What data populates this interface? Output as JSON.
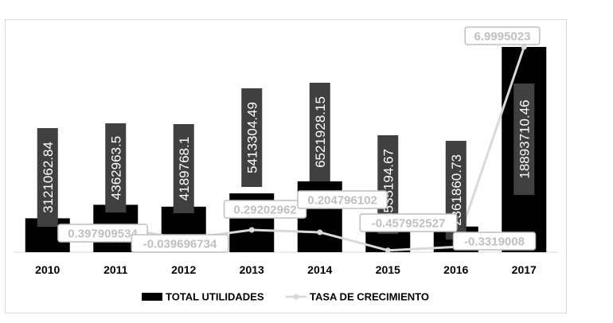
{
  "chart_data": {
    "type": "bar+line",
    "categories": [
      "2010",
      "2011",
      "2012",
      "2013",
      "2014",
      "2015",
      "2016",
      "2017"
    ],
    "series": [
      {
        "name": "TOTAL UTILIDADES",
        "kind": "bar",
        "color": "#000000",
        "values": [
          3121062.84,
          4362963.5,
          4189768.1,
          5413304.49,
          6521928.15,
          3535194.67,
          2361860.73,
          18893710.46
        ],
        "labels": [
          "3121062.84",
          "4362963.5",
          "4189768.1",
          "5413304.49",
          "6521928.15",
          "3535194.67",
          "2361860.73",
          "18893710.46"
        ]
      },
      {
        "name": "TASA DE CRECIMIENTO",
        "kind": "line",
        "color": "#d9d9d9",
        "values": [
          null,
          0.397909534,
          -0.039696734,
          0.29202962,
          0.204796102,
          -0.457952527,
          -0.3319008,
          6.9995023
        ],
        "labels": [
          "",
          "0.397909534",
          "-0.039696734",
          "0.29202962",
          "0.204796102",
          "-0.457952527",
          "-0.3319008",
          "6.9995023"
        ]
      }
    ],
    "legend": {
      "position": "bottom"
    },
    "grid": false
  }
}
